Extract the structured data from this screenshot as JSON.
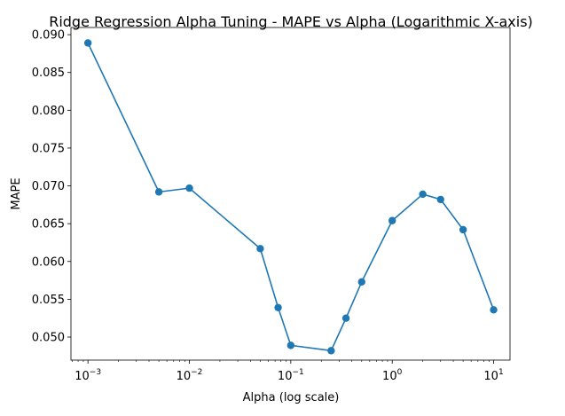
{
  "chart_data": {
    "type": "line",
    "title": "Ridge Regression Alpha Tuning - MAPE vs Alpha (Logarithmic X-axis)",
    "xlabel": "Alpha (log scale)",
    "ylabel": "MAPE",
    "xscale": "log",
    "xlim": [
      0.00068,
      14.5
    ],
    "ylim": [
      0.04695,
      0.09095
    ],
    "grid": false,
    "legend": "none",
    "x_ticks": [
      {
        "value": 0.001,
        "base": "10",
        "exp": "−3"
      },
      {
        "value": 0.01,
        "base": "10",
        "exp": "−2"
      },
      {
        "value": 0.1,
        "base": "10",
        "exp": "−1"
      },
      {
        "value": 1,
        "base": "10",
        "exp": "0"
      },
      {
        "value": 10,
        "base": "10",
        "exp": "1"
      }
    ],
    "y_ticks": [
      {
        "value": 0.05,
        "label": "0.050"
      },
      {
        "value": 0.055,
        "label": "0.055"
      },
      {
        "value": 0.06,
        "label": "0.060"
      },
      {
        "value": 0.065,
        "label": "0.065"
      },
      {
        "value": 0.07,
        "label": "0.070"
      },
      {
        "value": 0.075,
        "label": "0.075"
      },
      {
        "value": 0.08,
        "label": "0.080"
      },
      {
        "value": 0.085,
        "label": "0.085"
      },
      {
        "value": 0.09,
        "label": "0.090"
      }
    ],
    "series": [
      {
        "color": "#1f77b4",
        "marker": "circle",
        "x": [
          0.001,
          0.005,
          0.01,
          0.05,
          0.075,
          0.1,
          0.25,
          0.35,
          0.5,
          1,
          2,
          3,
          5,
          10
        ],
        "y": [
          0.0889,
          0.0692,
          0.0697,
          0.0617,
          0.0539,
          0.0489,
          0.0482,
          0.0525,
          0.0573,
          0.0654,
          0.0689,
          0.0682,
          0.0642,
          0.0536
        ]
      }
    ]
  }
}
